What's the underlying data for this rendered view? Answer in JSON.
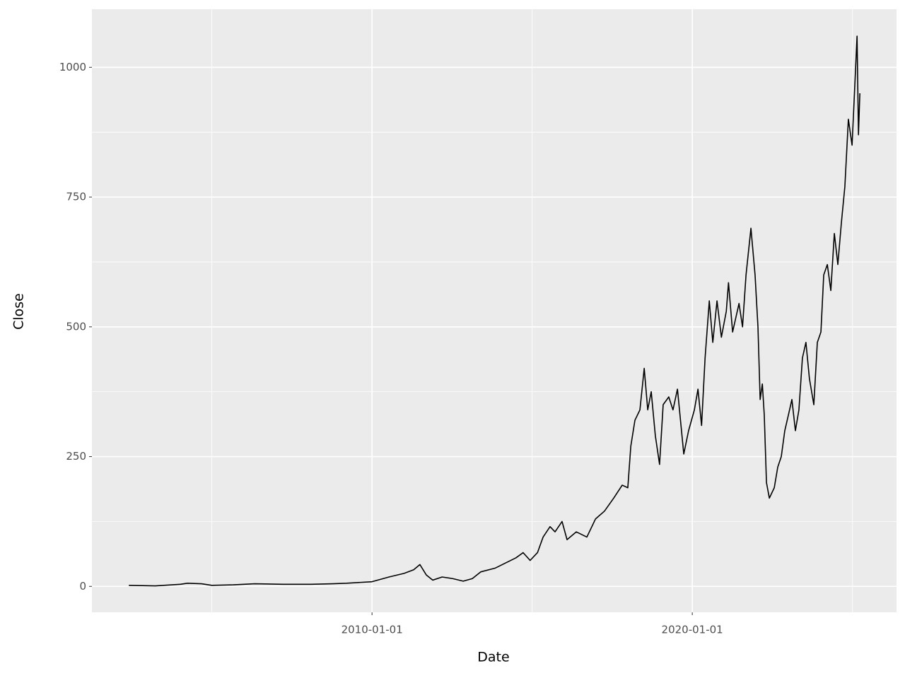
{
  "chart_data": {
    "type": "line",
    "x_label": "Date",
    "y_label": "Close",
    "color": "#000000",
    "x": [
      "2002-05-30",
      "2003-03-28",
      "2004-01-08",
      "2004-03-28",
      "2004-09-05",
      "2005-01-01",
      "2005-09-01",
      "2006-05-04",
      "2007-03-21",
      "2008-02-06",
      "2008-10-05",
      "2009-03-17",
      "2010-01-01",
      "2010-07-13",
      "2011-01-01",
      "2011-04-21",
      "2011-07-01",
      "2011-09-12",
      "2011-11-24",
      "2012-03-10",
      "2012-07-09",
      "2012-11-06",
      "2013-02-18",
      "2013-05-26",
      "2013-11-03",
      "2014-03-03",
      "2014-07-01",
      "2014-09-20",
      "2014-12-09",
      "2015-03-03",
      "2015-05-06",
      "2015-07-24",
      "2015-09-19",
      "2015-12-08",
      "2016-02-03",
      "2016-05-18",
      "2016-09-16",
      "2016-12-24",
      "2017-04-05",
      "2017-07-19",
      "2017-10-24",
      "2017-12-27",
      "2018-01-30",
      "2018-03-18",
      "2018-05-14",
      "2018-07-02",
      "2018-08-11",
      "2018-09-20",
      "2018-11-06",
      "2018-12-24",
      "2019-02-03",
      "2019-04-08",
      "2019-05-26",
      "2019-07-16",
      "2019-09-26",
      "2019-11-20",
      "2020-01-25",
      "2020-03-06",
      "2020-04-16",
      "2020-05-26",
      "2020-07-13",
      "2020-08-22",
      "2020-10-09",
      "2020-11-28",
      "2021-01-23",
      "2021-02-17",
      "2021-04-05",
      "2021-06-17",
      "2021-07-27",
      "2021-09-05",
      "2021-10-31",
      "2021-12-17",
      "2022-01-19",
      "2022-02-13",
      "2022-03-10",
      "2022-04-01",
      "2022-04-26",
      "2022-05-29",
      "2022-07-24",
      "2022-09-02",
      "2022-10-12",
      "2022-11-21",
      "2023-01-01",
      "2023-02-10",
      "2023-03-22",
      "2023-05-01",
      "2023-06-10",
      "2023-07-20",
      "2023-08-29",
      "2023-10-18",
      "2023-11-27",
      "2024-01-07",
      "2024-02-08",
      "2024-03-20",
      "2024-04-29",
      "2024-06-08",
      "2024-07-18",
      "2024-08-27",
      "2024-10-06",
      "2024-11-15",
      "2024-12-27",
      "2025-02-06",
      "2025-02-22",
      "2025-03-10",
      "2025-03-26"
    ],
    "values": [
      2,
      1,
      4,
      6,
      5,
      2,
      3,
      5,
      4,
      4,
      5,
      6,
      9,
      18,
      25,
      32,
      42,
      22,
      12,
      18,
      15,
      10,
      15,
      28,
      35,
      45,
      55,
      65,
      50,
      65,
      95,
      115,
      105,
      125,
      90,
      105,
      95,
      130,
      145,
      170,
      195,
      190,
      270,
      320,
      340,
      420,
      340,
      375,
      290,
      235,
      350,
      365,
      340,
      380,
      255,
      300,
      340,
      380,
      310,
      440,
      550,
      470,
      550,
      480,
      530,
      585,
      490,
      545,
      500,
      600,
      690,
      600,
      500,
      360,
      390,
      330,
      200,
      170,
      190,
      230,
      250,
      300,
      330,
      360,
      300,
      340,
      440,
      470,
      400,
      350,
      470,
      490,
      600,
      620,
      570,
      680,
      620,
      700,
      770,
      900,
      850,
      1000,
      1060,
      870,
      950
    ],
    "xlim": [
      "2001-04-04",
      "2026-05-18"
    ],
    "xticks": [
      "2010-01-01",
      "2020-01-01"
    ],
    "xminorticks": [
      "2005-01-01",
      "2015-01-01",
      "2025-01-01"
    ],
    "ylim": [
      -50,
      1112
    ],
    "yticks": [
      0,
      250,
      500,
      750,
      1000
    ],
    "yminorticks": [
      125,
      375,
      625,
      875
    ],
    "grid": true
  }
}
